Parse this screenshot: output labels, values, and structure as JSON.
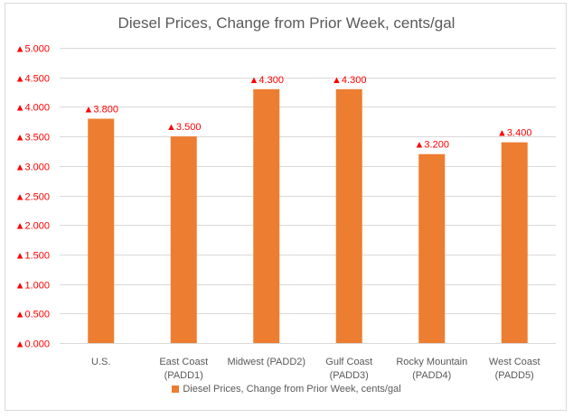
{
  "chart_data": {
    "type": "bar",
    "title": "Diesel Prices, Change from Prior Week, cents/gal",
    "categories": [
      [
        "U.S."
      ],
      [
        "East Coast",
        "(PADD1)"
      ],
      [
        "Midwest (PADD2)"
      ],
      [
        "Gulf Coast",
        "(PADD3)"
      ],
      [
        "Rocky Mountain",
        "(PADD4)"
      ],
      [
        "West Coast",
        "(PADD5)"
      ]
    ],
    "series": [
      {
        "name": "Diesel Prices, Change from Prior Week, cents/gal",
        "values": [
          3.8,
          3.5,
          4.3,
          4.3,
          3.2,
          3.4
        ],
        "color": "#ED7D31"
      }
    ],
    "data_labels": [
      "▲3.800",
      "▲3.500",
      "▲4.300",
      "▲4.300",
      "▲3.200",
      "▲3.400"
    ],
    "yticks": [
      0,
      0.5,
      1,
      1.5,
      2,
      2.5,
      3,
      3.5,
      4,
      4.5,
      5
    ],
    "ytick_labels": [
      "▲0.000",
      "▲0.500",
      "▲1.000",
      "▲1.500",
      "▲2.000",
      "▲2.500",
      "▲3.000",
      "▲3.500",
      "▲4.000",
      "▲4.500",
      "▲5.000"
    ],
    "ylim": [
      0,
      5
    ],
    "xlabel": "",
    "ylabel": "",
    "grid": true,
    "legend": "bottom",
    "label_color": "#FF0000",
    "grid_color": "#D9D9D9"
  }
}
